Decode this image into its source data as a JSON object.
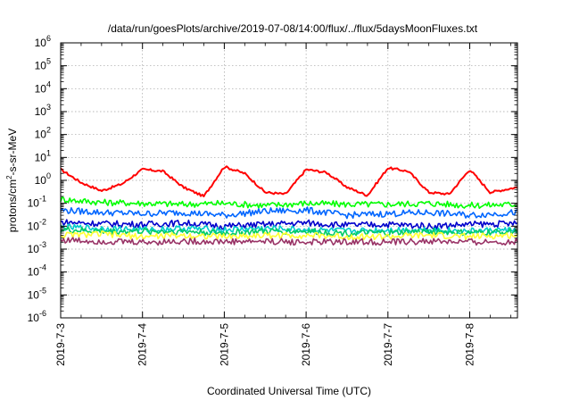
{
  "chart_data": {
    "type": "line",
    "title": "/data/run/goesPlots/archive/2019-07-08/14:00/flux/../flux/5daysMoonFluxes.txt",
    "xlabel": "Coordinated Universal Time (UTC)",
    "ylabel": {
      "base": "protons/cm",
      "sup": "2",
      "rest": "-s-sr-MeV"
    },
    "y_scale": "log",
    "ylim": [
      1e-06,
      1000000.0
    ],
    "xlim": [
      "2019-07-03",
      "2019-07-08 14:00"
    ],
    "grid": true,
    "x_ticks": [
      "2019-7-3",
      "2019-7-4",
      "2019-7-5",
      "2019-7-6",
      "2019-7-7",
      "2019-7-8"
    ],
    "y_ticks": [
      {
        "base": "10",
        "exp": "-6"
      },
      {
        "base": "10",
        "exp": "-5"
      },
      {
        "base": "10",
        "exp": "-4"
      },
      {
        "base": "10",
        "exp": "-3"
      },
      {
        "base": "10",
        "exp": "-2"
      },
      {
        "base": "10",
        "exp": "-1"
      },
      {
        "base": "10",
        "exp": "0"
      },
      {
        "base": "10",
        "exp": "1"
      },
      {
        "base": "10",
        "exp": "2"
      },
      {
        "base": "10",
        "exp": "3"
      },
      {
        "base": "10",
        "exp": "4"
      },
      {
        "base": "10",
        "exp": "5"
      },
      {
        "base": "10",
        "exp": "6"
      }
    ],
    "series": [
      {
        "color": "#ff0000",
        "x_days": [
          0,
          0.25,
          0.5,
          0.75,
          1,
          1.25,
          1.5,
          1.75,
          2,
          2.25,
          2.5,
          2.75,
          3,
          3.25,
          3.5,
          3.75,
          4,
          4.25,
          4.5,
          4.75,
          5,
          5.25,
          5.58
        ],
        "values": [
          3,
          0.8,
          0.35,
          0.7,
          3,
          2.5,
          0.5,
          0.2,
          4,
          2,
          0.3,
          0.25,
          3,
          2.2,
          0.5,
          0.22,
          3.5,
          2.5,
          0.3,
          0.25,
          3,
          0.3,
          0.5
        ]
      },
      {
        "color": "#00ff00",
        "x_days": [
          0,
          0.5,
          1,
          1.5,
          2,
          2.5,
          3,
          3.5,
          4,
          4.5,
          5,
          5.58
        ],
        "values": [
          0.15,
          0.11,
          0.1,
          0.09,
          0.1,
          0.08,
          0.1,
          0.09,
          0.09,
          0.1,
          0.08,
          0.09
        ]
      },
      {
        "color": "#0066ff",
        "x_days": [
          0,
          0.5,
          1,
          1.5,
          2,
          2.5,
          3,
          3.5,
          4,
          4.5,
          5,
          5.58
        ],
        "values": [
          0.05,
          0.04,
          0.035,
          0.04,
          0.03,
          0.045,
          0.05,
          0.03,
          0.035,
          0.04,
          0.03,
          0.04
        ]
      },
      {
        "color": "#0000cc",
        "x_days": [
          0,
          0.5,
          1,
          1.5,
          2,
          2.5,
          3,
          3.5,
          4,
          4.5,
          5,
          5.58
        ],
        "values": [
          0.015,
          0.013,
          0.012,
          0.014,
          0.01,
          0.012,
          0.014,
          0.011,
          0.012,
          0.01,
          0.012,
          0.013
        ]
      },
      {
        "color": "#00cccc",
        "x_days": [
          0,
          0.5,
          1,
          1.5,
          2,
          2.5,
          3,
          3.5,
          4,
          4.5,
          5,
          5.58
        ],
        "values": [
          0.009,
          0.008,
          0.007,
          0.008,
          0.007,
          0.008,
          0.007,
          0.006,
          0.007,
          0.007,
          0.006,
          0.007
        ]
      },
      {
        "color": "#00cc66",
        "x_days": [
          0,
          0.5,
          1,
          1.5,
          2,
          2.5,
          3,
          3.5,
          4,
          4.5,
          5,
          5.58
        ],
        "values": [
          0.007,
          0.006,
          0.006,
          0.006,
          0.005,
          0.006,
          0.006,
          0.005,
          0.005,
          0.006,
          0.005,
          0.006
        ]
      },
      {
        "color": "#ffff33",
        "x_days": [
          0,
          0.5,
          1,
          1.5,
          2,
          2.5,
          3,
          3.5,
          4,
          4.5,
          5,
          5.58
        ],
        "values": [
          0.004,
          0.0045,
          0.0035,
          0.004,
          0.0035,
          0.004,
          0.004,
          0.0035,
          0.0035,
          0.004,
          0.0035,
          0.004
        ]
      },
      {
        "color": "#993366",
        "x_days": [
          0,
          0.5,
          1,
          1.5,
          2,
          2.5,
          3,
          3.5,
          4,
          4.5,
          5,
          5.58
        ],
        "values": [
          0.0025,
          0.0022,
          0.002,
          0.0022,
          0.0021,
          0.0022,
          0.002,
          0.0021,
          0.002,
          0.0022,
          0.002,
          0.0021
        ]
      }
    ]
  }
}
